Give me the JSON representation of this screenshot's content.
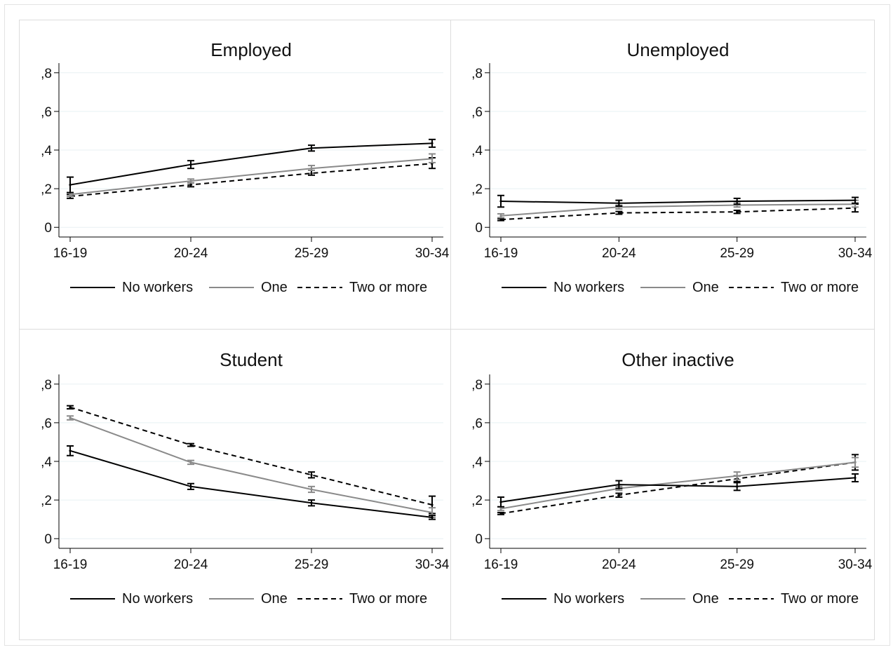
{
  "chart_data": [
    {
      "type": "line",
      "title": "Employed",
      "categories": [
        "16-19",
        "20-24",
        "25-29",
        "30-34"
      ],
      "yticks": [
        0,
        0.2,
        0.4,
        0.6,
        0.8
      ],
      "ytick_labels": [
        "0",
        ",2",
        ",4",
        ",6",
        ",8"
      ],
      "ylim": [
        -0.05,
        0.85
      ],
      "grid": true,
      "legend": "bottom",
      "series": [
        {
          "name": "No workers",
          "values": [
            0.22,
            0.325,
            0.41,
            0.435
          ],
          "ci_low": [
            0.18,
            0.305,
            0.395,
            0.415
          ],
          "ci_high": [
            0.26,
            0.345,
            0.425,
            0.455
          ]
        },
        {
          "name": "One",
          "values": [
            0.17,
            0.24,
            0.305,
            0.355
          ],
          "ci_low": [
            0.16,
            0.23,
            0.295,
            0.335
          ],
          "ci_high": [
            0.18,
            0.25,
            0.32,
            0.38
          ]
        },
        {
          "name": "Two or more",
          "values": [
            0.16,
            0.22,
            0.28,
            0.33
          ],
          "ci_low": [
            0.15,
            0.21,
            0.27,
            0.305
          ],
          "ci_high": [
            0.17,
            0.23,
            0.295,
            0.36
          ]
        }
      ]
    },
    {
      "type": "line",
      "title": "Unemployed",
      "categories": [
        "16-19",
        "20-24",
        "25-29",
        "30-34"
      ],
      "yticks": [
        0,
        0.2,
        0.4,
        0.6,
        0.8
      ],
      "ytick_labels": [
        "0",
        ",2",
        ",4",
        ",6",
        ",8"
      ],
      "ylim": [
        -0.05,
        0.85
      ],
      "grid": true,
      "legend": "bottom",
      "series": [
        {
          "name": "No workers",
          "values": [
            0.135,
            0.125,
            0.135,
            0.14
          ],
          "ci_low": [
            0.105,
            0.11,
            0.12,
            0.125
          ],
          "ci_high": [
            0.165,
            0.14,
            0.15,
            0.155
          ]
        },
        {
          "name": "One",
          "values": [
            0.06,
            0.105,
            0.115,
            0.12
          ],
          "ci_low": [
            0.05,
            0.095,
            0.105,
            0.105
          ],
          "ci_high": [
            0.07,
            0.115,
            0.13,
            0.14
          ]
        },
        {
          "name": "Two or more",
          "values": [
            0.04,
            0.075,
            0.08,
            0.1
          ],
          "ci_low": [
            0.035,
            0.068,
            0.072,
            0.08
          ],
          "ci_high": [
            0.045,
            0.082,
            0.088,
            0.12
          ]
        }
      ]
    },
    {
      "type": "line",
      "title": "Student",
      "categories": [
        "16-19",
        "20-24",
        "25-29",
        "30-34"
      ],
      "yticks": [
        0,
        0.2,
        0.4,
        0.6,
        0.8
      ],
      "ytick_labels": [
        "0",
        ",2",
        ",4",
        ",6",
        ",8"
      ],
      "ylim": [
        -0.05,
        0.85
      ],
      "grid": true,
      "legend": "bottom",
      "series": [
        {
          "name": "No workers",
          "values": [
            0.455,
            0.27,
            0.185,
            0.11
          ],
          "ci_low": [
            0.43,
            0.255,
            0.17,
            0.1
          ],
          "ci_high": [
            0.48,
            0.285,
            0.2,
            0.12
          ]
        },
        {
          "name": "One",
          "values": [
            0.625,
            0.395,
            0.255,
            0.135
          ],
          "ci_low": [
            0.615,
            0.385,
            0.24,
            0.11
          ],
          "ci_high": [
            0.635,
            0.405,
            0.27,
            0.16
          ]
        },
        {
          "name": "Two or more",
          "values": [
            0.68,
            0.485,
            0.33,
            0.175
          ],
          "ci_low": [
            0.672,
            0.478,
            0.315,
            0.13
          ],
          "ci_high": [
            0.688,
            0.492,
            0.345,
            0.22
          ]
        }
      ]
    },
    {
      "type": "line",
      "title": "Other inactive",
      "categories": [
        "16-19",
        "20-24",
        "25-29",
        "30-34"
      ],
      "yticks": [
        0,
        0.2,
        0.4,
        0.6,
        0.8
      ],
      "ytick_labels": [
        "0",
        ",2",
        ",4",
        ",6",
        ",8"
      ],
      "ylim": [
        -0.05,
        0.85
      ],
      "grid": true,
      "legend": "bottom",
      "series": [
        {
          "name": "No workers",
          "values": [
            0.19,
            0.28,
            0.27,
            0.315
          ],
          "ci_low": [
            0.165,
            0.26,
            0.25,
            0.295
          ],
          "ci_high": [
            0.215,
            0.3,
            0.29,
            0.335
          ]
        },
        {
          "name": "One",
          "values": [
            0.155,
            0.26,
            0.325,
            0.395
          ],
          "ci_low": [
            0.145,
            0.25,
            0.305,
            0.37
          ],
          "ci_high": [
            0.165,
            0.27,
            0.345,
            0.42
          ]
        },
        {
          "name": "Two or more",
          "values": [
            0.13,
            0.225,
            0.31,
            0.395
          ],
          "ci_low": [
            0.125,
            0.215,
            0.295,
            0.355
          ],
          "ci_high": [
            0.135,
            0.235,
            0.325,
            0.435
          ]
        }
      ]
    }
  ],
  "style": {
    "colors": {
      "No workers": "#000000",
      "One": "#8a8a8a",
      "Two or more": "#000000"
    },
    "dashed": {
      "No workers": false,
      "One": false,
      "Two or more": true
    },
    "grid_color": "#e8f0f3",
    "panel_border_color": "#dcdcdc",
    "outer_border_color": "#e3e3e3"
  }
}
